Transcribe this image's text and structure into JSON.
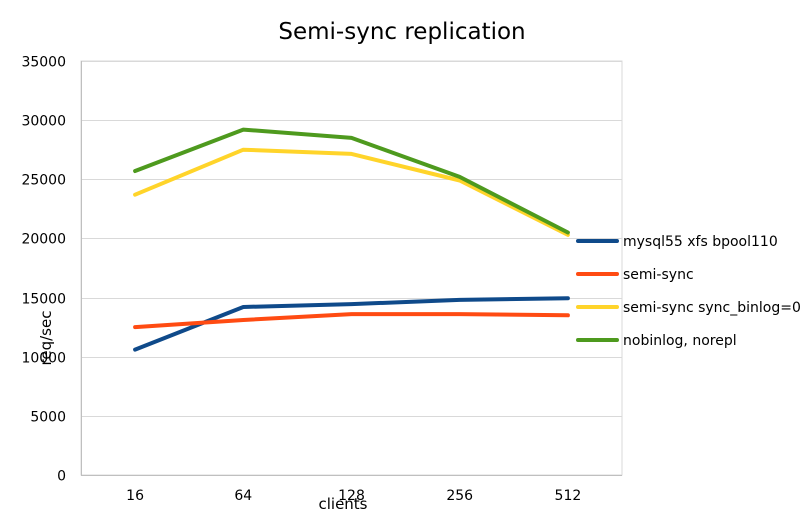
{
  "chart_data": {
    "type": "line",
    "title": "Semi-sync replication",
    "xlabel": "clients",
    "ylabel": "req/sec",
    "categories": [
      "16",
      "64",
      "128",
      "256",
      "512"
    ],
    "ylim": [
      0,
      35000
    ],
    "yticks": [
      0,
      5000,
      10000,
      15000,
      20000,
      25000,
      30000,
      35000
    ],
    "grid": true,
    "legend_position": "right",
    "series": [
      {
        "name": "mysql55 xfs bpool110",
        "color": "#0F4A8A",
        "values": [
          10600,
          14200,
          14450,
          14800,
          14950
        ]
      },
      {
        "name": "semi-sync",
        "color": "#FF4B12",
        "values": [
          12500,
          13100,
          13600,
          13600,
          13500
        ]
      },
      {
        "name": "semi-sync sync_binlog=0",
        "color": "#FFD42A",
        "values": [
          23700,
          27500,
          27150,
          24900,
          20300
        ]
      },
      {
        "name": "nobinlog, norepl",
        "color": "#4E9A1E",
        "values": [
          25700,
          29200,
          28500,
          25200,
          20500
        ]
      }
    ]
  }
}
